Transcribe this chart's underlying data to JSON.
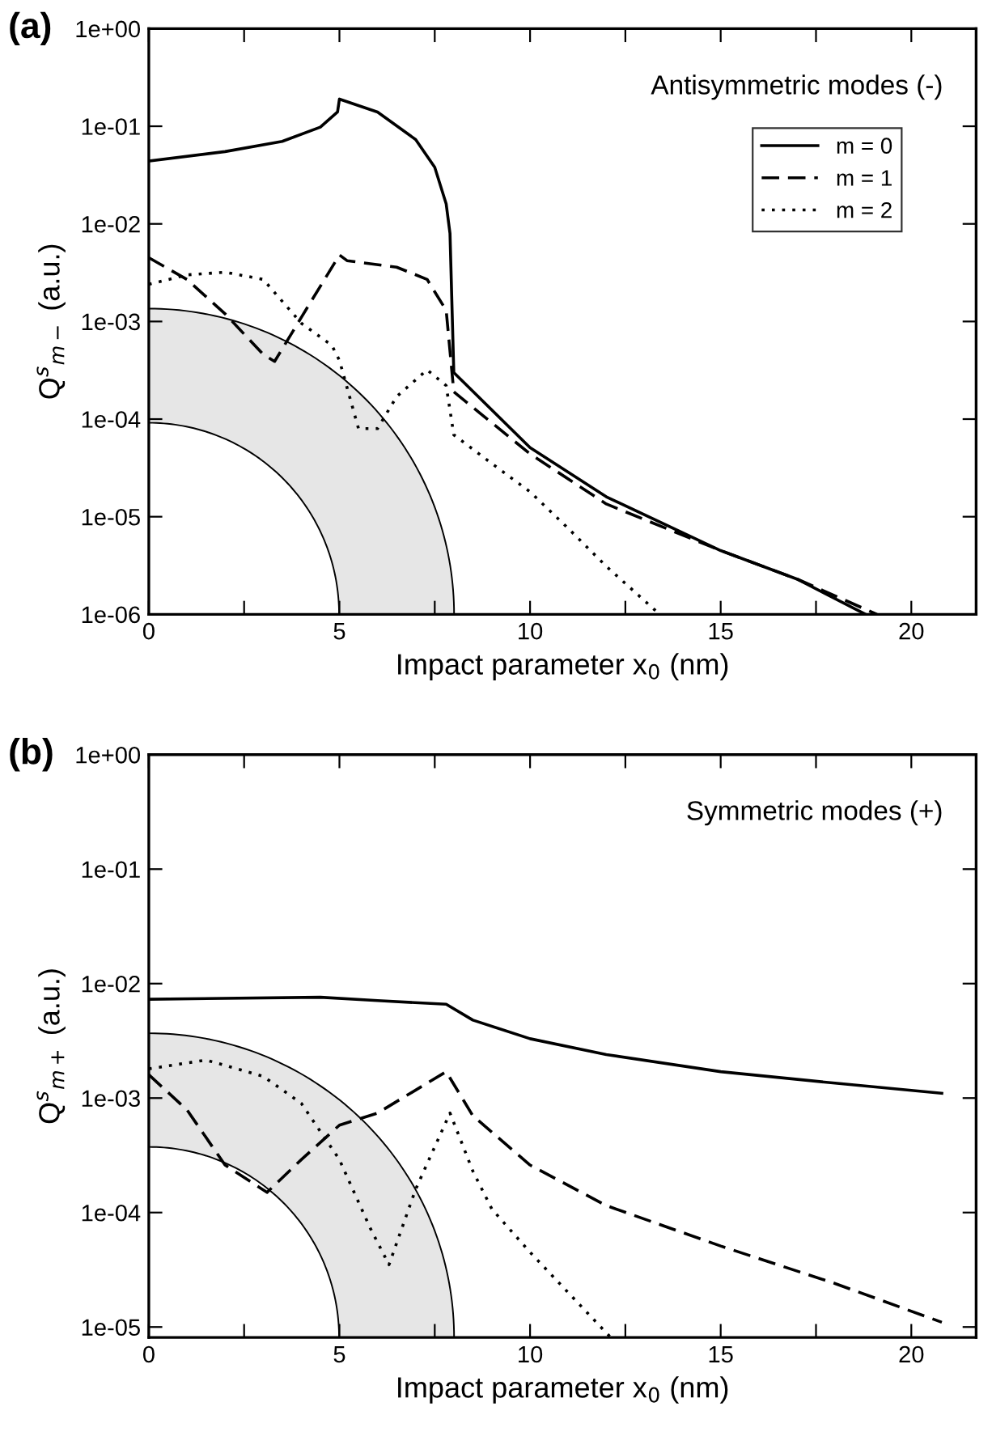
{
  "chart_data": [
    {
      "type": "line",
      "title": "(a)",
      "xlabel": "Impact parameter x$_{0}$ (nm)",
      "ylabel": "Q$^{s}$$_{m−}$ (a.u.)",
      "log": "y",
      "xlim": [
        0,
        21.7
      ],
      "ylim": [
        1e-06,
        1
      ],
      "xticks": [
        0,
        {
          "value": 2.5,
          "label": null
        },
        5,
        {
          "value": 7.5,
          "label": null
        },
        10,
        {
          "value": 12.5,
          "label": null
        },
        15,
        {
          "value": 17.5,
          "label": null
        },
        20
      ],
      "yticks": [
        {
          "value": 1e-06,
          "label": "1e-06"
        },
        {
          "value": 1e-05,
          "label": "1e-05"
        },
        {
          "value": 0.0001,
          "label": "1e-04"
        },
        {
          "value": 0.001,
          "label": "1e-03"
        },
        {
          "value": 0.01,
          "label": "1e-02"
        },
        {
          "value": 0.1,
          "label": "1e-01"
        },
        {
          "value": 1,
          "label": "1e+00"
        }
      ],
      "annotations": [
        "Antisymmetric modes (-)"
      ],
      "legend": "top right",
      "grid": false,
      "series": [
        {
          "name": "m = 0",
          "color": "#000000",
          "line_style": "solid",
          "x": [
            0,
            2,
            3.5,
            4.5,
            4.95,
            5,
            6,
            7,
            7.5,
            7.8,
            7.9,
            8,
            10,
            12,
            15,
            17,
            18.8
          ],
          "values": [
            0.044,
            0.055,
            0.07,
            0.098,
            0.14,
            0.19,
            0.14,
            0.073,
            0.038,
            0.016,
            0.008,
            0.0003,
            5.1e-05,
            1.6e-05,
            4.5e-06,
            2.3e-06,
            1e-06
          ]
        },
        {
          "name": "m = 1",
          "color": "#000000",
          "line_style": "dashed",
          "x": [
            0,
            1,
            2,
            3,
            3.3,
            4,
            5,
            5.2,
            6.5,
            7.3,
            7.8,
            8,
            10,
            12,
            15,
            17,
            19.1
          ],
          "values": [
            0.0045,
            0.0027,
            0.0012,
            0.00046,
            0.00039,
            0.0011,
            0.0048,
            0.0042,
            0.0036,
            0.0027,
            0.0013,
            0.00019,
            4.4e-05,
            1.35e-05,
            4.5e-06,
            2.3e-06,
            1e-06
          ]
        },
        {
          "name": "m = 2",
          "color": "#000000",
          "line_style": "dotted",
          "x": [
            0,
            1,
            2,
            3,
            4,
            4.8,
            5,
            5.5,
            6,
            6.5,
            7.3,
            7.8,
            8,
            9,
            10,
            11,
            12,
            13.4
          ],
          "values": [
            0.0024,
            0.003,
            0.0032,
            0.0027,
            0.00096,
            0.00057,
            0.0004,
            8e-05,
            8e-05,
            0.00017,
            0.00032,
            0.00022,
            6.9e-05,
            3.5e-05,
            1.8e-05,
            7.6e-06,
            3.1e-06,
            1e-06
          ]
        }
      ]
    },
    {
      "type": "line",
      "title": "(b)",
      "xlabel": "Impact parameter x$_{0}$ (nm)",
      "ylabel": "Q$^{s}$$_{m+}$ (a.u.)",
      "log": "y",
      "xlim": [
        0,
        21.7
      ],
      "ylim": [
        8.1e-06,
        1
      ],
      "xticks": [
        0,
        {
          "value": 2.5,
          "label": null
        },
        5,
        {
          "value": 7.5,
          "label": null
        },
        10,
        {
          "value": 12.5,
          "label": null
        },
        15,
        {
          "value": 17.5,
          "label": null
        },
        20
      ],
      "yticks": [
        {
          "value": 1e-05,
          "label": "1e-05"
        },
        {
          "value": 0.0001,
          "label": "1e-04"
        },
        {
          "value": 0.001,
          "label": "1e-03"
        },
        {
          "value": 0.01,
          "label": "1e-02"
        },
        {
          "value": 0.1,
          "label": "1e-01"
        },
        {
          "value": 1,
          "label": "1e+00"
        }
      ],
      "annotations": [
        "Symmetric modes (+)"
      ],
      "grid": false,
      "series": [
        {
          "color": "#000000",
          "line_style": "solid",
          "x": [
            0,
            4.5,
            6,
            7.8,
            8.5,
            10,
            12,
            15,
            18,
            20.8
          ],
          "values": [
            0.0073,
            0.0076,
            0.0071,
            0.0066,
            0.0048,
            0.0033,
            0.0024,
            0.0017,
            0.00135,
            0.0011
          ]
        },
        {
          "color": "#000000",
          "line_style": "dashed",
          "x": [
            0,
            1,
            2,
            3.1,
            4,
            5,
            6,
            7.8,
            8.5,
            10,
            12,
            15,
            18,
            20.8
          ],
          "values": [
            0.0016,
            0.00079,
            0.00026,
            0.00015,
            0.00029,
            0.00058,
            0.00074,
            0.0017,
            0.0007,
            0.00026,
            0.000115,
            5.1e-05,
            2.4e-05,
            1.1e-05
          ]
        },
        {
          "color": "#000000",
          "line_style": "dotted",
          "x": [
            0,
            1.5,
            3,
            4,
            5,
            5.8,
            6.3,
            7,
            7.9,
            8.5,
            9,
            10,
            11,
            12.1
          ],
          "values": [
            0.0018,
            0.00215,
            0.00155,
            0.0009,
            0.00029,
            7.4e-05,
            3.5e-05,
            0.00016,
            0.00074,
            0.00023,
            0.000107,
            4.5e-05,
            2e-05,
            8.2e-06
          ]
        }
      ]
    }
  ]
}
